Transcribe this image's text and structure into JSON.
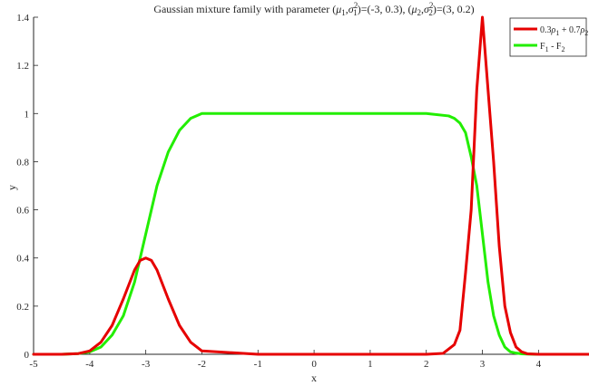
{
  "chart_data": {
    "type": "line",
    "title": {
      "prefix": "Gaussian mixture family with parameter (",
      "mu1": "μ",
      "sub1": "1",
      "comma1": ",",
      "sigma1": "σ",
      "sup1": "2",
      "sigsub1": "1",
      "val1": ")=(-3, 0.3), (",
      "mu2": "μ",
      "sub2": "2",
      "comma2": ",",
      "sigma2": "σ",
      "sup2": "2",
      "sigsub2": "2",
      "val2": ")=(3, 0.2)"
    },
    "xlabel": "x",
    "ylabel": "y",
    "xlim": [
      -5,
      4.9
    ],
    "ylim": [
      0,
      1.4
    ],
    "xticks": [
      -5,
      -4,
      -3,
      -2,
      -1,
      0,
      1,
      2,
      3,
      4
    ],
    "xtick_labels": [
      "-5",
      "-4",
      "-3",
      "-2",
      "-1",
      "0",
      "1",
      "2",
      "3",
      "4"
    ],
    "yticks": [
      0,
      0.2,
      0.4,
      0.6,
      0.8,
      1,
      1.2,
      1.4
    ],
    "ytick_labels": [
      "0",
      "0.2",
      "0.4",
      "0.6",
      "0.8",
      "1",
      "1.2",
      "1.4"
    ],
    "grid": false,
    "legend_position": "top-right",
    "series": [
      {
        "name": "0.3ρ1 + 0.7ρ2",
        "legend": {
          "a": "0.3",
          "rho1": "ρ",
          "s1": "1",
          "plus": " + 0.7",
          "rho2": "ρ",
          "s2": "2"
        },
        "color": "#e60000",
        "x": [
          -5,
          -4.5,
          -4.2,
          -4,
          -3.8,
          -3.6,
          -3.4,
          -3.2,
          -3.1,
          -3,
          -2.9,
          -2.8,
          -2.6,
          -2.4,
          -2.2,
          -2,
          -1,
          0,
          1,
          2,
          2.3,
          2.5,
          2.6,
          2.7,
          2.8,
          2.9,
          3,
          3.1,
          3.2,
          3.3,
          3.4,
          3.5,
          3.6,
          3.7,
          3.8,
          4,
          4.9
        ],
        "y": [
          0,
          0,
          0.003,
          0.014,
          0.05,
          0.12,
          0.23,
          0.35,
          0.39,
          0.4,
          0.39,
          0.35,
          0.23,
          0.12,
          0.05,
          0.014,
          0,
          0,
          0,
          0,
          0.004,
          0.04,
          0.1,
          0.34,
          0.6,
          1.1,
          1.4,
          1.1,
          0.8,
          0.45,
          0.2,
          0.09,
          0.03,
          0.01,
          0.002,
          0,
          0
        ]
      },
      {
        "name": "F1 - F2",
        "legend": {
          "a": "F",
          "s1": "1",
          "mid": " - F",
          "s2": "2"
        },
        "color": "#22ee00",
        "x": [
          -5,
          -4.5,
          -4.2,
          -4,
          -3.8,
          -3.6,
          -3.4,
          -3.2,
          -3,
          -2.8,
          -2.6,
          -2.4,
          -2.2,
          -2,
          -1,
          0,
          1,
          2,
          2.4,
          2.5,
          2.6,
          2.7,
          2.8,
          2.9,
          3,
          3.1,
          3.2,
          3.3,
          3.4,
          3.5,
          3.6,
          3.7,
          3.8,
          4,
          4.9
        ],
        "y": [
          0,
          0,
          0.003,
          0.01,
          0.03,
          0.08,
          0.16,
          0.3,
          0.5,
          0.7,
          0.84,
          0.93,
          0.98,
          1,
          1,
          1,
          1,
          1,
          0.99,
          0.98,
          0.96,
          0.92,
          0.82,
          0.7,
          0.5,
          0.3,
          0.16,
          0.08,
          0.03,
          0.01,
          0.005,
          0.002,
          0.001,
          0,
          0
        ]
      }
    ]
  }
}
